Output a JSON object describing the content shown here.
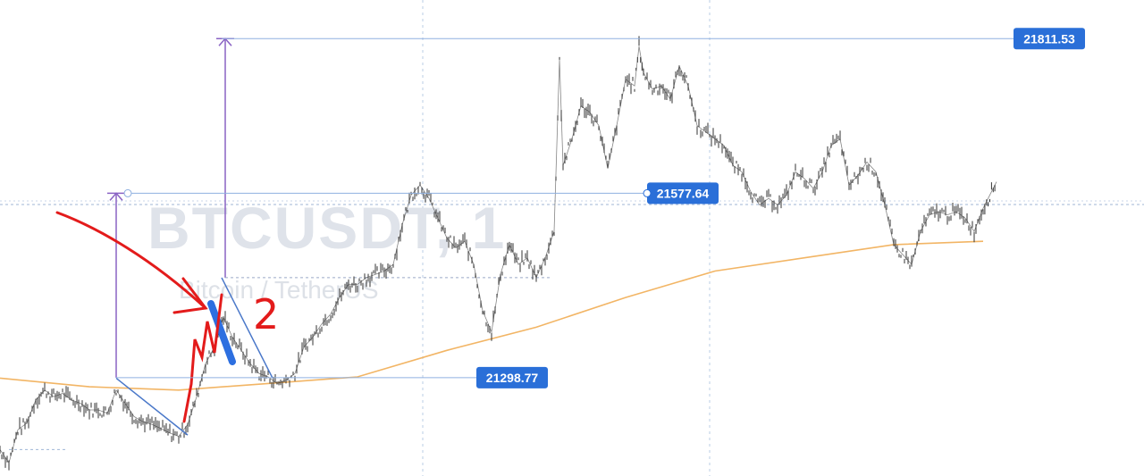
{
  "chart_data": {
    "type": "line",
    "title": "",
    "watermark": {
      "symbol": "BTCUSDT, 1",
      "name": "Bitcoin / TetherUS"
    },
    "xlabel": "",
    "ylabel": "",
    "ylim": [
      21150,
      21870
    ],
    "x_range": [
      0,
      1115
    ],
    "grid": "vertical dotted lines only",
    "series": [
      {
        "name": "",
        "color": "#333333",
        "points": [
          [
            0,
            21190
          ],
          [
            10,
            21170
          ],
          [
            20,
            21220
          ],
          [
            30,
            21230
          ],
          [
            40,
            21265
          ],
          [
            50,
            21280
          ],
          [
            60,
            21270
          ],
          [
            70,
            21275
          ],
          [
            80,
            21265
          ],
          [
            90,
            21260
          ],
          [
            100,
            21250
          ],
          [
            110,
            21250
          ],
          [
            120,
            21245
          ],
          [
            130,
            21280
          ],
          [
            140,
            21260
          ],
          [
            150,
            21240
          ],
          [
            160,
            21232
          ],
          [
            170,
            21228
          ],
          [
            180,
            21222
          ],
          [
            190,
            21215
          ],
          [
            200,
            21210
          ],
          [
            210,
            21228
          ],
          [
            220,
            21270
          ],
          [
            230,
            21320
          ],
          [
            240,
            21345
          ],
          [
            250,
            21390
          ],
          [
            260,
            21360
          ],
          [
            270,
            21340
          ],
          [
            280,
            21320
          ],
          [
            290,
            21305
          ],
          [
            300,
            21300
          ],
          [
            310,
            21290
          ],
          [
            320,
            21295
          ],
          [
            330,
            21305
          ],
          [
            340,
            21345
          ],
          [
            350,
            21360
          ],
          [
            360,
            21380
          ],
          [
            370,
            21395
          ],
          [
            380,
            21420
          ],
          [
            390,
            21440
          ],
          [
            400,
            21440
          ],
          [
            410,
            21450
          ],
          [
            420,
            21455
          ],
          [
            430,
            21460
          ],
          [
            440,
            21470
          ],
          [
            450,
            21530
          ],
          [
            460,
            21575
          ],
          [
            470,
            21590
          ],
          [
            480,
            21570
          ],
          [
            490,
            21540
          ],
          [
            500,
            21510
          ],
          [
            510,
            21495
          ],
          [
            520,
            21505
          ],
          [
            530,
            21470
          ],
          [
            540,
            21400
          ],
          [
            550,
            21368
          ],
          [
            560,
            21455
          ],
          [
            570,
            21500
          ],
          [
            580,
            21470
          ],
          [
            590,
            21480
          ],
          [
            600,
            21450
          ],
          [
            610,
            21480
          ],
          [
            620,
            21520
          ],
          [
            626,
            21780
          ],
          [
            630,
            21620
          ],
          [
            640,
            21660
          ],
          [
            650,
            21710
          ],
          [
            660,
            21700
          ],
          [
            670,
            21680
          ],
          [
            680,
            21615
          ],
          [
            690,
            21680
          ],
          [
            700,
            21750
          ],
          [
            710,
            21740
          ],
          [
            715,
            21800
          ],
          [
            720,
            21760
          ],
          [
            730,
            21735
          ],
          [
            740,
            21740
          ],
          [
            750,
            21720
          ],
          [
            760,
            21770
          ],
          [
            770,
            21740
          ],
          [
            780,
            21680
          ],
          [
            790,
            21670
          ],
          [
            800,
            21660
          ],
          [
            810,
            21650
          ],
          [
            820,
            21620
          ],
          [
            830,
            21610
          ],
          [
            840,
            21580
          ],
          [
            850,
            21560
          ],
          [
            860,
            21570
          ],
          [
            870,
            21560
          ],
          [
            880,
            21575
          ],
          [
            890,
            21610
          ],
          [
            900,
            21600
          ],
          [
            910,
            21585
          ],
          [
            920,
            21610
          ],
          [
            930,
            21650
          ],
          [
            940,
            21660
          ],
          [
            950,
            21590
          ],
          [
            960,
            21605
          ],
          [
            970,
            21625
          ],
          [
            980,
            21610
          ],
          [
            990,
            21560
          ],
          [
            1000,
            21500
          ],
          [
            1010,
            21485
          ],
          [
            1020,
            21470
          ],
          [
            1030,
            21520
          ],
          [
            1040,
            21545
          ],
          [
            1050,
            21550
          ],
          [
            1060,
            21545
          ],
          [
            1070,
            21550
          ],
          [
            1080,
            21540
          ],
          [
            1090,
            21520
          ],
          [
            1100,
            21555
          ],
          [
            1115,
            21595
          ]
        ]
      },
      {
        "name": "",
        "color": "#f2b565",
        "points": [
          [
            0,
            21298
          ],
          [
            100,
            21285
          ],
          [
            200,
            21280
          ],
          [
            300,
            21290
          ],
          [
            400,
            21300
          ],
          [
            500,
            21340
          ],
          [
            600,
            21375
          ],
          [
            700,
            21420
          ],
          [
            800,
            21460
          ],
          [
            900,
            21480
          ],
          [
            1000,
            21500
          ],
          [
            1100,
            21505
          ]
        ]
      }
    ],
    "price_labels": [
      {
        "value": 21811.53,
        "text": "21811.53",
        "color": "#2a6fd8"
      },
      {
        "value": 21577.64,
        "text": "21577.64",
        "color": "#2a6fd8"
      },
      {
        "value": 21298.77,
        "text": "21298.77",
        "color": "#2a6fd8"
      }
    ],
    "drawings": {
      "trendline_color": "#4a78c9",
      "measure_color": "#8a63c4",
      "marker_color": "#e31b1b",
      "highlight_color": "#2d6fe0"
    },
    "annotations": [
      {
        "text": "2",
        "color": "#e31b1b"
      }
    ]
  }
}
